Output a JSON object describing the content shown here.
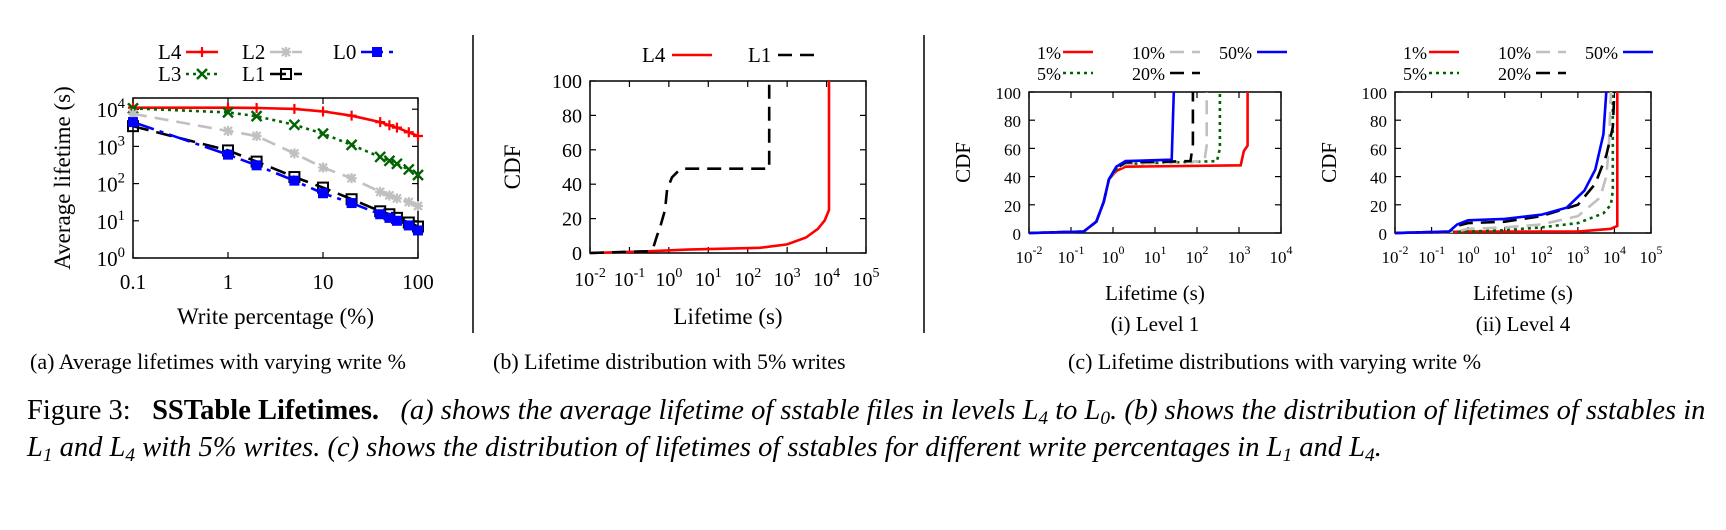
{
  "chart_data": [
    {
      "id": "a",
      "type": "line",
      "xscale": "log",
      "yscale": "log",
      "xlabel": "Write percentage (%)",
      "ylabel": "Average lifetime (s)",
      "xlim": [
        0.1,
        100
      ],
      "ylim": [
        1,
        20000
      ],
      "xticks": [
        {
          "v": 0.1,
          "label": "0.1"
        },
        {
          "v": 1,
          "label": "1"
        },
        {
          "v": 10,
          "label": "10"
        },
        {
          "v": 100,
          "label": "100"
        }
      ],
      "yticks": [
        {
          "v": 1,
          "b": "10",
          "e": "0"
        },
        {
          "v": 10,
          "b": "10",
          "e": "1"
        },
        {
          "v": 100,
          "b": "10",
          "e": "2"
        },
        {
          "v": 1000,
          "b": "10",
          "e": "3"
        },
        {
          "v": 10000,
          "b": "10",
          "e": "4"
        }
      ],
      "x": [
        0.1,
        1,
        2,
        5,
        10,
        20,
        40,
        50,
        60,
        80,
        100
      ],
      "series": [
        {
          "name": "L4",
          "color": "#ff0000",
          "dash": "",
          "marker": "plus",
          "values": [
            11000,
            11000,
            10800,
            10200,
            8700,
            6700,
            4500,
            3700,
            3200,
            2400,
            1900
          ]
        },
        {
          "name": "L3",
          "color": "#006400",
          "dash": "3,4",
          "marker": "x",
          "values": [
            10500,
            8200,
            6500,
            3800,
            2200,
            1100,
            520,
            410,
            340,
            240,
            170
          ]
        },
        {
          "name": "L2",
          "color": "#c0c0c0",
          "dash": "14,8",
          "marker": "star",
          "values": [
            7500,
            2600,
            1900,
            650,
            270,
            140,
            60,
            48,
            40,
            32,
            25
          ]
        },
        {
          "name": "L1",
          "color": "#000000",
          "dash": "16,8",
          "marker": "square",
          "values": [
            3500,
            780,
            390,
            150,
            78,
            38,
            18,
            15,
            12,
            9,
            7
          ]
        },
        {
          "name": "L0",
          "color": "#0000ff",
          "dash": "22,6,4,6",
          "marker": "fsquare",
          "values": [
            4500,
            600,
            310,
            120,
            55,
            30,
            15,
            12,
            10,
            7.5,
            5.5
          ]
        }
      ],
      "legend_order": [
        "L4",
        "L2",
        "L0",
        "L3",
        "L1"
      ],
      "legend": "top"
    },
    {
      "id": "b",
      "type": "line",
      "xscale": "log",
      "yscale": "linear",
      "xlabel": "Lifetime (s)",
      "ylabel": "CDF",
      "xlim": [
        0.01,
        100000
      ],
      "ylim": [
        0,
        100
      ],
      "xticks": [
        {
          "v": 0.01,
          "b": "10",
          "e": "-2"
        },
        {
          "v": 0.1,
          "b": "10",
          "e": "-1"
        },
        {
          "v": 1,
          "b": "10",
          "e": "0"
        },
        {
          "v": 10,
          "b": "10",
          "e": "1"
        },
        {
          "v": 100,
          "b": "10",
          "e": "2"
        },
        {
          "v": 1000,
          "b": "10",
          "e": "3"
        },
        {
          "v": 10000,
          "b": "10",
          "e": "4"
        },
        {
          "v": 100000,
          "b": "10",
          "e": "5"
        }
      ],
      "yticks": [
        0,
        20,
        40,
        60,
        80,
        100
      ],
      "series": [
        {
          "name": "L4",
          "color": "#ff0000",
          "dash": "",
          "points": [
            [
              0.01,
              0
            ],
            [
              0.3,
              1
            ],
            [
              3,
              2
            ],
            [
              200,
              3
            ],
            [
              1000,
              5
            ],
            [
              3000,
              9
            ],
            [
              6000,
              14
            ],
            [
              9000,
              19
            ],
            [
              11500,
              25
            ],
            [
              11500,
              100
            ]
          ]
        },
        {
          "name": "L1",
          "color": "#000000",
          "dash": "14,8",
          "points": [
            [
              0.01,
              0
            ],
            [
              0.3,
              1
            ],
            [
              0.4,
              3
            ],
            [
              0.5,
              10
            ],
            [
              0.6,
              15
            ],
            [
              0.8,
              25
            ],
            [
              0.9,
              37
            ],
            [
              1.2,
              44
            ],
            [
              1.8,
              48
            ],
            [
              2.5,
              49
            ],
            [
              350,
              49
            ],
            [
              350,
              100
            ]
          ]
        }
      ],
      "legend": "top"
    },
    {
      "id": "c1",
      "type": "line",
      "title": "(i) Level 1",
      "xscale": "log",
      "yscale": "linear",
      "xlabel": "Lifetime (s)",
      "ylabel": "CDF",
      "xlim": [
        0.01,
        10000
      ],
      "ylim": [
        0,
        100
      ],
      "xticks": [
        {
          "v": 0.01,
          "b": "10",
          "e": "-2"
        },
        {
          "v": 0.1,
          "b": "10",
          "e": "-1"
        },
        {
          "v": 1,
          "b": "10",
          "e": "0"
        },
        {
          "v": 10,
          "b": "10",
          "e": "1"
        },
        {
          "v": 100,
          "b": "10",
          "e": "2"
        },
        {
          "v": 1000,
          "b": "10",
          "e": "3"
        },
        {
          "v": 10000,
          "b": "10",
          "e": "4"
        }
      ],
      "yticks": [
        0,
        20,
        40,
        60,
        80,
        100
      ],
      "series": [
        {
          "name": "1%",
          "color": "#ff0000",
          "dash": "",
          "points": [
            [
              0.01,
              0
            ],
            [
              0.2,
              1
            ],
            [
              0.4,
              8
            ],
            [
              0.6,
              22
            ],
            [
              0.8,
              38
            ],
            [
              1.2,
              44
            ],
            [
              2,
              47
            ],
            [
              1100,
              48
            ],
            [
              1300,
              58
            ],
            [
              1600,
              62
            ],
            [
              1600,
              100
            ]
          ]
        },
        {
          "name": "5%",
          "color": "#006400",
          "dash": "3,4",
          "points": [
            [
              0.01,
              0
            ],
            [
              0.2,
              1
            ],
            [
              0.4,
              8
            ],
            [
              0.6,
              22
            ],
            [
              0.8,
              38
            ],
            [
              1.2,
              45
            ],
            [
              2,
              49
            ],
            [
              300,
              51
            ],
            [
              350,
              60
            ],
            [
              350,
              100
            ]
          ]
        },
        {
          "name": "10%",
          "color": "#c0c0c0",
          "dash": "14,8",
          "points": [
            [
              0.01,
              0
            ],
            [
              0.2,
              1
            ],
            [
              0.4,
              8
            ],
            [
              0.6,
              22
            ],
            [
              0.8,
              38
            ],
            [
              1.2,
              45
            ],
            [
              2,
              49
            ],
            [
              150,
              51
            ],
            [
              170,
              62
            ],
            [
              170,
              100
            ]
          ]
        },
        {
          "name": "20%",
          "color": "#000000",
          "dash": "14,8",
          "points": [
            [
              0.01,
              0
            ],
            [
              0.2,
              1
            ],
            [
              0.4,
              8
            ],
            [
              0.6,
              22
            ],
            [
              0.8,
              38
            ],
            [
              1.2,
              46
            ],
            [
              2,
              50
            ],
            [
              70,
              51
            ],
            [
              80,
              63
            ],
            [
              80,
              100
            ]
          ]
        },
        {
          "name": "50%",
          "color": "#0000ff",
          "dash": "",
          "points": [
            [
              0.01,
              0
            ],
            [
              0.2,
              1
            ],
            [
              0.4,
              8
            ],
            [
              0.6,
              22
            ],
            [
              0.8,
              38
            ],
            [
              1.2,
              47
            ],
            [
              2,
              51
            ],
            [
              25,
              52
            ],
            [
              28,
              100
            ]
          ]
        }
      ],
      "legend_order": [
        "1%",
        "10%",
        "50%",
        "5%",
        "20%"
      ],
      "legend": "top"
    },
    {
      "id": "c2",
      "type": "line",
      "title": "(ii) Level 4",
      "xscale": "log",
      "yscale": "linear",
      "xlabel": "Lifetime (s)",
      "ylabel": "CDF",
      "xlim": [
        0.01,
        100000
      ],
      "ylim": [
        0,
        100
      ],
      "xticks": [
        {
          "v": 0.01,
          "b": "10",
          "e": "-2"
        },
        {
          "v": 0.1,
          "b": "10",
          "e": "-1"
        },
        {
          "v": 1,
          "b": "10",
          "e": "0"
        },
        {
          "v": 10,
          "b": "10",
          "e": "1"
        },
        {
          "v": 100,
          "b": "10",
          "e": "2"
        },
        {
          "v": 1000,
          "b": "10",
          "e": "3"
        },
        {
          "v": 10000,
          "b": "10",
          "e": "4"
        },
        {
          "v": 100000,
          "b": "10",
          "e": "5"
        }
      ],
      "yticks": [
        0,
        20,
        40,
        60,
        80,
        100
      ],
      "series": [
        {
          "name": "1%",
          "color": "#ff0000",
          "dash": "",
          "points": [
            [
              0.01,
              0
            ],
            [
              1,
              1
            ],
            [
              1000,
              1
            ],
            [
              8000,
              3
            ],
            [
              12000,
              5
            ],
            [
              12000,
              100
            ]
          ]
        },
        {
          "name": "5%",
          "color": "#006400",
          "dash": "3,4",
          "points": [
            [
              0.01,
              0
            ],
            [
              1,
              1
            ],
            [
              10,
              2
            ],
            [
              100,
              4
            ],
            [
              1000,
              7
            ],
            [
              5000,
              14
            ],
            [
              8000,
              20
            ],
            [
              9000,
              30
            ],
            [
              9000,
              100
            ]
          ]
        },
        {
          "name": "10%",
          "color": "#c0c0c0",
          "dash": "14,8",
          "points": [
            [
              0.01,
              0
            ],
            [
              0.5,
              1
            ],
            [
              1,
              3
            ],
            [
              10,
              4
            ],
            [
              100,
              6
            ],
            [
              1000,
              12
            ],
            [
              4000,
              25
            ],
            [
              6000,
              40
            ],
            [
              7000,
              60
            ],
            [
              8000,
              100
            ]
          ]
        },
        {
          "name": "20%",
          "color": "#000000",
          "dash": "14,8",
          "points": [
            [
              0.01,
              0
            ],
            [
              0.3,
              1
            ],
            [
              0.5,
              5
            ],
            [
              1,
              7
            ],
            [
              10,
              8
            ],
            [
              100,
              12
            ],
            [
              1000,
              20
            ],
            [
              3000,
              35
            ],
            [
              6000,
              55
            ],
            [
              9000,
              75
            ],
            [
              10000,
              100
            ]
          ]
        },
        {
          "name": "50%",
          "color": "#0000ff",
          "dash": "",
          "points": [
            [
              0.01,
              0
            ],
            [
              0.3,
              1
            ],
            [
              0.5,
              6
            ],
            [
              1,
              9
            ],
            [
              10,
              10
            ],
            [
              100,
              13
            ],
            [
              500,
              18
            ],
            [
              1500,
              30
            ],
            [
              3000,
              45
            ],
            [
              5000,
              70
            ],
            [
              6000,
              100
            ]
          ]
        }
      ],
      "legend_order": [
        "1%",
        "10%",
        "50%",
        "5%",
        "20%"
      ],
      "legend": "top"
    }
  ],
  "subcaptions": {
    "a": "(a) Average lifetimes with varying write %",
    "b": "(b) Lifetime distribution with 5% writes",
    "c": "(c) Lifetime distributions with varying write %"
  },
  "caption": {
    "label": "Figure 3:",
    "title": "SSTable Lifetimes.",
    "p1": "(a) shows the average lifetime of sstable files in levels L",
    "p1_sub": "4",
    "p2": " to L",
    "p2_sub": "0",
    "p3": ". (b) shows the distribution of lifetimes of sstables in L",
    "p3_sub": "1",
    "p4": " and L",
    "p4_sub": "4",
    "p5": " with 5% writes. (c) shows the distribution of lifetimes of sstables for different write percentages in L",
    "p5_sub": "1",
    "p6": " and L",
    "p6_sub": "4",
    "p7": "."
  }
}
